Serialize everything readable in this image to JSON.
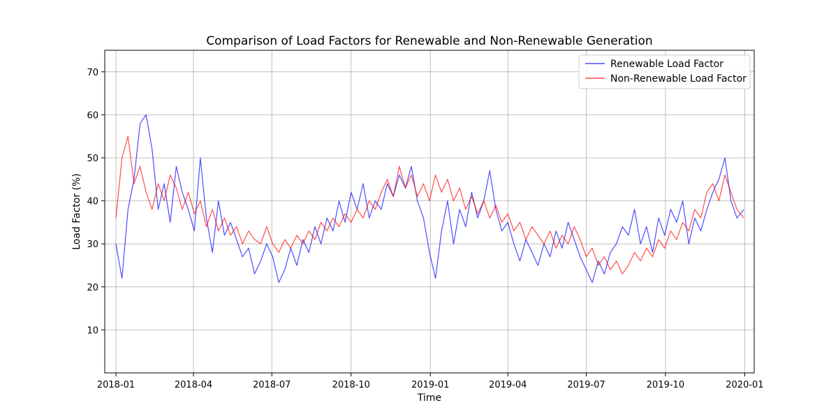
{
  "chart_data": {
    "type": "line",
    "title": "Comparison of Load Factors for Renewable and Non-Renewable Generation",
    "xlabel": "Time",
    "ylabel": "Load Factor (%)",
    "x_range": [
      "2017-12-19",
      "2020-01-12"
    ],
    "ylim": [
      0,
      75
    ],
    "x_ticks": [
      "2018-01",
      "2018-04",
      "2018-07",
      "2018-10",
      "2019-01",
      "2019-04",
      "2019-07",
      "2019-10",
      "2020-01"
    ],
    "y_ticks": [
      10,
      20,
      30,
      40,
      50,
      60,
      70
    ],
    "grid": true,
    "legend_position": "top-right",
    "series": [
      {
        "name": "Renewable Load Factor",
        "color": "#0000ff",
        "opacity": 0.7,
        "points": [
          [
            "2018-01-01",
            30
          ],
          [
            "2018-01-08",
            22
          ],
          [
            "2018-01-15",
            38
          ],
          [
            "2018-01-22",
            45
          ],
          [
            "2018-01-29",
            58
          ],
          [
            "2018-02-05",
            60
          ],
          [
            "2018-02-12",
            52
          ],
          [
            "2018-02-19",
            38
          ],
          [
            "2018-02-26",
            44
          ],
          [
            "2018-03-05",
            35
          ],
          [
            "2018-03-12",
            48
          ],
          [
            "2018-03-19",
            42
          ],
          [
            "2018-03-26",
            38
          ],
          [
            "2018-04-02",
            33
          ],
          [
            "2018-04-09",
            50
          ],
          [
            "2018-04-16",
            36
          ],
          [
            "2018-04-23",
            28
          ],
          [
            "2018-04-30",
            40
          ],
          [
            "2018-05-07",
            32
          ],
          [
            "2018-05-14",
            35
          ],
          [
            "2018-05-21",
            31
          ],
          [
            "2018-05-28",
            27
          ],
          [
            "2018-06-04",
            29
          ],
          [
            "2018-06-11",
            23
          ],
          [
            "2018-06-18",
            26
          ],
          [
            "2018-06-25",
            30
          ],
          [
            "2018-07-02",
            27
          ],
          [
            "2018-07-09",
            21
          ],
          [
            "2018-07-16",
            24
          ],
          [
            "2018-07-23",
            29
          ],
          [
            "2018-07-30",
            25
          ],
          [
            "2018-08-06",
            31
          ],
          [
            "2018-08-13",
            28
          ],
          [
            "2018-08-20",
            34
          ],
          [
            "2018-08-27",
            30
          ],
          [
            "2018-09-03",
            36
          ],
          [
            "2018-09-10",
            33
          ],
          [
            "2018-09-17",
            40
          ],
          [
            "2018-09-24",
            35
          ],
          [
            "2018-10-01",
            42
          ],
          [
            "2018-10-08",
            38
          ],
          [
            "2018-10-15",
            44
          ],
          [
            "2018-10-22",
            36
          ],
          [
            "2018-10-29",
            40
          ],
          [
            "2018-11-05",
            38
          ],
          [
            "2018-11-12",
            44
          ],
          [
            "2018-11-19",
            41
          ],
          [
            "2018-11-26",
            46
          ],
          [
            "2018-12-03",
            43
          ],
          [
            "2018-12-10",
            48
          ],
          [
            "2018-12-17",
            40
          ],
          [
            "2018-12-24",
            36
          ],
          [
            "2018-12-31",
            28
          ],
          [
            "2019-01-07",
            22
          ],
          [
            "2019-01-14",
            33
          ],
          [
            "2019-01-21",
            40
          ],
          [
            "2019-01-28",
            30
          ],
          [
            "2019-02-04",
            38
          ],
          [
            "2019-02-11",
            34
          ],
          [
            "2019-02-18",
            42
          ],
          [
            "2019-02-25",
            36
          ],
          [
            "2019-03-04",
            40
          ],
          [
            "2019-03-11",
            47
          ],
          [
            "2019-03-18",
            38
          ],
          [
            "2019-03-25",
            33
          ],
          [
            "2019-04-01",
            35
          ],
          [
            "2019-04-08",
            30
          ],
          [
            "2019-04-15",
            26
          ],
          [
            "2019-04-22",
            31
          ],
          [
            "2019-04-29",
            28
          ],
          [
            "2019-05-06",
            25
          ],
          [
            "2019-05-13",
            30
          ],
          [
            "2019-05-20",
            27
          ],
          [
            "2019-05-27",
            33
          ],
          [
            "2019-06-03",
            29
          ],
          [
            "2019-06-10",
            35
          ],
          [
            "2019-06-17",
            31
          ],
          [
            "2019-06-24",
            27
          ],
          [
            "2019-07-01",
            24
          ],
          [
            "2019-07-08",
            21
          ],
          [
            "2019-07-15",
            26
          ],
          [
            "2019-07-22",
            23
          ],
          [
            "2019-07-29",
            28
          ],
          [
            "2019-08-05",
            30
          ],
          [
            "2019-08-12",
            34
          ],
          [
            "2019-08-19",
            32
          ],
          [
            "2019-08-26",
            38
          ],
          [
            "2019-09-02",
            30
          ],
          [
            "2019-09-09",
            34
          ],
          [
            "2019-09-16",
            28
          ],
          [
            "2019-09-23",
            36
          ],
          [
            "2019-09-30",
            32
          ],
          [
            "2019-10-07",
            38
          ],
          [
            "2019-10-14",
            35
          ],
          [
            "2019-10-21",
            40
          ],
          [
            "2019-10-28",
            30
          ],
          [
            "2019-11-04",
            36
          ],
          [
            "2019-11-11",
            33
          ],
          [
            "2019-11-18",
            38
          ],
          [
            "2019-11-25",
            42
          ],
          [
            "2019-12-02",
            45
          ],
          [
            "2019-12-09",
            50
          ],
          [
            "2019-12-16",
            40
          ],
          [
            "2019-12-23",
            36
          ],
          [
            "2019-12-31",
            38
          ]
        ]
      },
      {
        "name": "Non-Renewable Load Factor",
        "color": "#ff0000",
        "opacity": 0.7,
        "points": [
          [
            "2018-01-01",
            36
          ],
          [
            "2018-01-08",
            50
          ],
          [
            "2018-01-15",
            55
          ],
          [
            "2018-01-22",
            44
          ],
          [
            "2018-01-29",
            48
          ],
          [
            "2018-02-05",
            42
          ],
          [
            "2018-02-12",
            38
          ],
          [
            "2018-02-19",
            44
          ],
          [
            "2018-02-26",
            40
          ],
          [
            "2018-03-05",
            46
          ],
          [
            "2018-03-12",
            43
          ],
          [
            "2018-03-19",
            38
          ],
          [
            "2018-03-26",
            42
          ],
          [
            "2018-04-02",
            37
          ],
          [
            "2018-04-09",
            40
          ],
          [
            "2018-04-16",
            34
          ],
          [
            "2018-04-23",
            38
          ],
          [
            "2018-04-30",
            33
          ],
          [
            "2018-05-07",
            36
          ],
          [
            "2018-05-14",
            32
          ],
          [
            "2018-05-21",
            34
          ],
          [
            "2018-05-28",
            30
          ],
          [
            "2018-06-04",
            33
          ],
          [
            "2018-06-11",
            31
          ],
          [
            "2018-06-18",
            30
          ],
          [
            "2018-06-25",
            34
          ],
          [
            "2018-07-02",
            30
          ],
          [
            "2018-07-09",
            28
          ],
          [
            "2018-07-16",
            31
          ],
          [
            "2018-07-23",
            29
          ],
          [
            "2018-07-30",
            32
          ],
          [
            "2018-08-06",
            30
          ],
          [
            "2018-08-13",
            33
          ],
          [
            "2018-08-20",
            31
          ],
          [
            "2018-08-27",
            35
          ],
          [
            "2018-09-03",
            33
          ],
          [
            "2018-09-10",
            36
          ],
          [
            "2018-09-17",
            34
          ],
          [
            "2018-09-24",
            37
          ],
          [
            "2018-10-01",
            35
          ],
          [
            "2018-10-08",
            38
          ],
          [
            "2018-10-15",
            36
          ],
          [
            "2018-10-22",
            40
          ],
          [
            "2018-10-29",
            38
          ],
          [
            "2018-11-05",
            42
          ],
          [
            "2018-11-12",
            45
          ],
          [
            "2018-11-19",
            41
          ],
          [
            "2018-11-26",
            48
          ],
          [
            "2018-12-03",
            43
          ],
          [
            "2018-12-10",
            46
          ],
          [
            "2018-12-17",
            41
          ],
          [
            "2018-12-24",
            44
          ],
          [
            "2018-12-31",
            40
          ],
          [
            "2019-01-07",
            46
          ],
          [
            "2019-01-14",
            42
          ],
          [
            "2019-01-21",
            45
          ],
          [
            "2019-01-28",
            40
          ],
          [
            "2019-02-04",
            43
          ],
          [
            "2019-02-11",
            38
          ],
          [
            "2019-02-18",
            41
          ],
          [
            "2019-02-25",
            37
          ],
          [
            "2019-03-04",
            40
          ],
          [
            "2019-03-11",
            36
          ],
          [
            "2019-03-18",
            39
          ],
          [
            "2019-03-25",
            35
          ],
          [
            "2019-04-01",
            37
          ],
          [
            "2019-04-08",
            33
          ],
          [
            "2019-04-15",
            35
          ],
          [
            "2019-04-22",
            31
          ],
          [
            "2019-04-29",
            34
          ],
          [
            "2019-05-06",
            32
          ],
          [
            "2019-05-13",
            30
          ],
          [
            "2019-05-20",
            33
          ],
          [
            "2019-05-27",
            29
          ],
          [
            "2019-06-03",
            32
          ],
          [
            "2019-06-10",
            30
          ],
          [
            "2019-06-17",
            34
          ],
          [
            "2019-06-24",
            31
          ],
          [
            "2019-07-01",
            27
          ],
          [
            "2019-07-08",
            29
          ],
          [
            "2019-07-15",
            25
          ],
          [
            "2019-07-22",
            27
          ],
          [
            "2019-07-29",
            24
          ],
          [
            "2019-08-05",
            26
          ],
          [
            "2019-08-12",
            23
          ],
          [
            "2019-08-19",
            25
          ],
          [
            "2019-08-26",
            28
          ],
          [
            "2019-09-02",
            26
          ],
          [
            "2019-09-09",
            29
          ],
          [
            "2019-09-16",
            27
          ],
          [
            "2019-09-23",
            31
          ],
          [
            "2019-09-30",
            29
          ],
          [
            "2019-10-07",
            33
          ],
          [
            "2019-10-14",
            31
          ],
          [
            "2019-10-21",
            35
          ],
          [
            "2019-10-28",
            33
          ],
          [
            "2019-11-04",
            38
          ],
          [
            "2019-11-11",
            36
          ],
          [
            "2019-11-18",
            42
          ],
          [
            "2019-11-25",
            44
          ],
          [
            "2019-12-02",
            40
          ],
          [
            "2019-12-09",
            46
          ],
          [
            "2019-12-16",
            42
          ],
          [
            "2019-12-23",
            38
          ],
          [
            "2019-12-31",
            36
          ]
        ]
      }
    ]
  }
}
